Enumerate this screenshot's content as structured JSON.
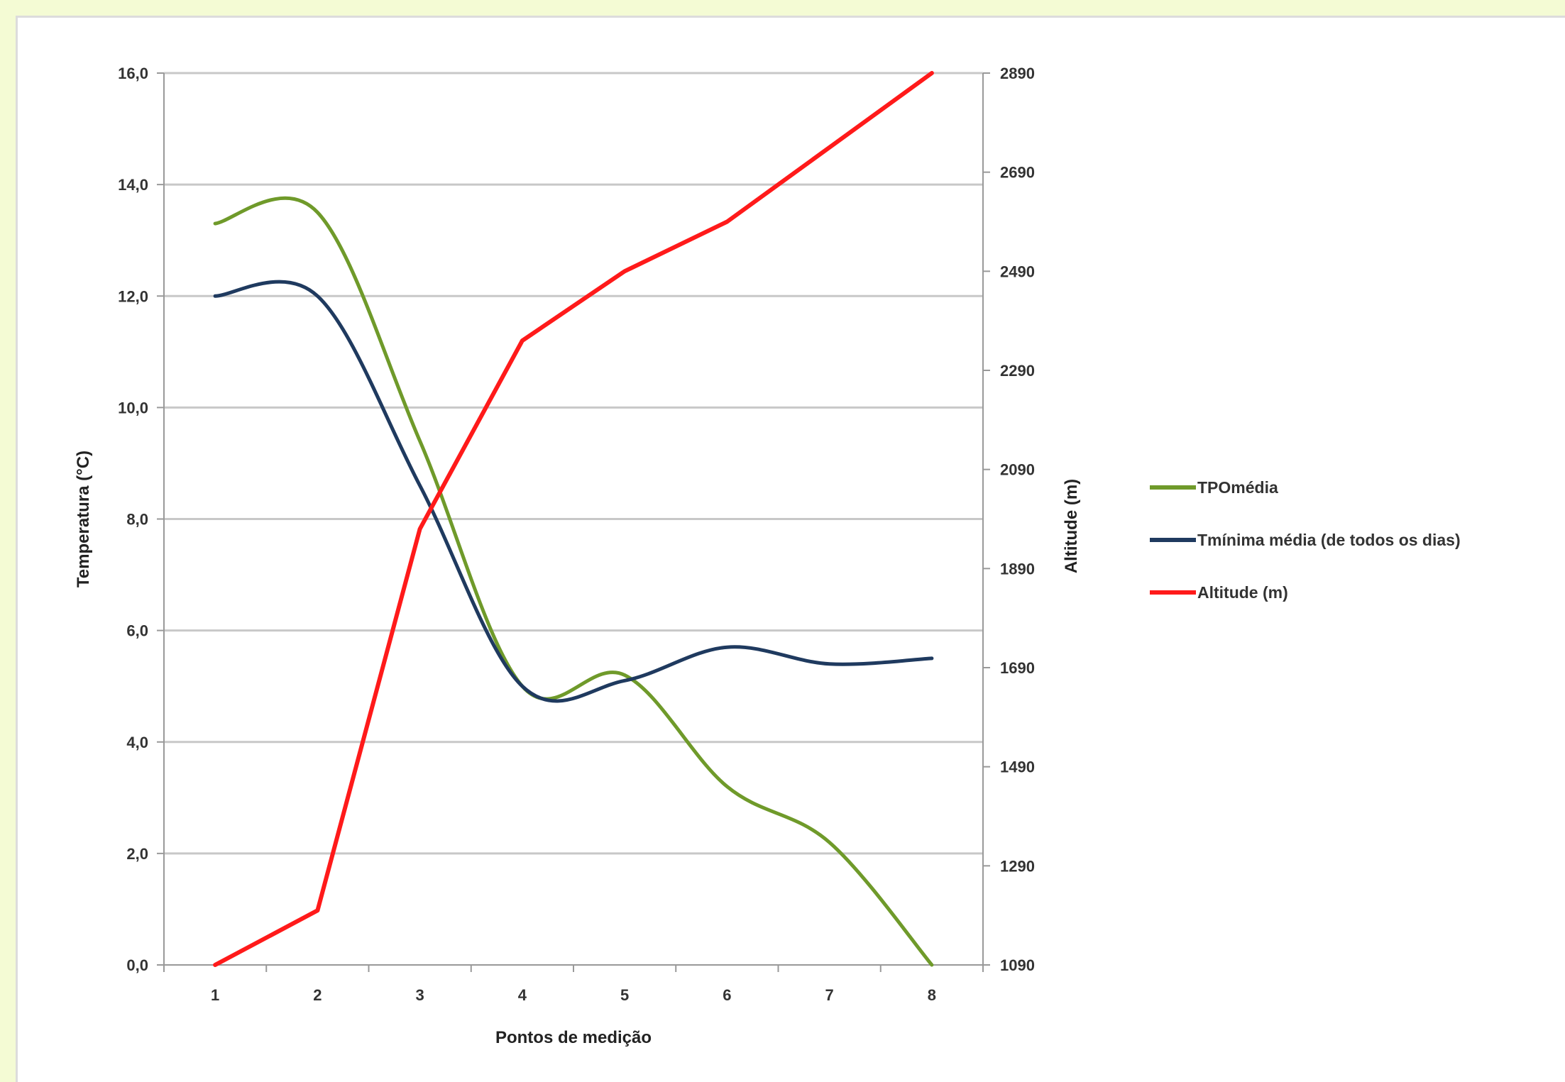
{
  "chart_data": {
    "type": "line",
    "title": "",
    "x": [
      1,
      2,
      3,
      4,
      5,
      6,
      7,
      8
    ],
    "xlabel": "Pontos de medição",
    "ylabel": "Temperatura (°C)",
    "y2label": "Altitude (m)",
    "ylim": [
      0,
      16
    ],
    "y2lim": [
      1090,
      2890
    ],
    "yticks": [
      "0,0",
      "2,0",
      "4,0",
      "6,0",
      "8,0",
      "10,0",
      "12,0",
      "14,0",
      "16,0"
    ],
    "y2ticks": [
      "1090",
      "1290",
      "1490",
      "1690",
      "1890",
      "2090",
      "2290",
      "2490",
      "2690",
      "2890"
    ],
    "grid": true,
    "legend_position": "right",
    "series": [
      {
        "name": "TPOmédia",
        "axis": "left",
        "color": "#6f9a2a",
        "values": [
          13.3,
          13.5,
          9.4,
          5.0,
          5.2,
          3.2,
          2.2,
          0.0
        ]
      },
      {
        "name": "Tmínima média (de todos os dias)",
        "axis": "left",
        "color": "#1f3a5f",
        "values": [
          12.0,
          12.0,
          8.6,
          5.0,
          5.1,
          5.7,
          5.4,
          5.5
        ]
      },
      {
        "name": "Altitude (m)",
        "axis": "right",
        "color": "#ff1a1a",
        "values": [
          1090,
          1200,
          1970,
          2350,
          2490,
          2590,
          2740,
          2890
        ]
      }
    ]
  }
}
